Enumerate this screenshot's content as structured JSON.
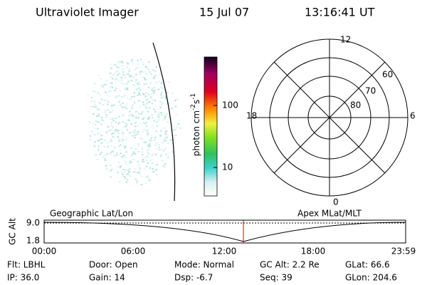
{
  "header": {
    "title": "Ultraviolet Imager",
    "date": "15 Jul 07",
    "time": "13:16:41 UT"
  },
  "colorbar": {
    "label": [
      "photon cm",
      "-2",
      "s",
      "-1"
    ],
    "ticks": [
      "100",
      "10"
    ]
  },
  "polar": {
    "clock": [
      "12",
      "6",
      "0",
      "18"
    ],
    "latitudes": [
      "60",
      "70",
      "80"
    ]
  },
  "timeline": {
    "left_label": "Geographic Lat/Lon",
    "right_label": "Apex MLat/MLT",
    "axis_label": "GC Alt",
    "y_labels": [
      "9.0",
      "1.8"
    ],
    "x_labels": [
      "00:00",
      "06:00",
      "12:00",
      "18:00",
      "23:59"
    ]
  },
  "footer": {
    "rows": [
      [
        "Flt: LBHL",
        "Door: Open",
        "Mode: Normal",
        "GC Alt: 2.2 Re",
        "GLat: 66.6"
      ],
      [
        "IP: 36.0",
        "Gain: 14",
        "Dsp:  -6.7",
        "Seq: 39",
        "GLon: 204.6"
      ]
    ]
  }
}
